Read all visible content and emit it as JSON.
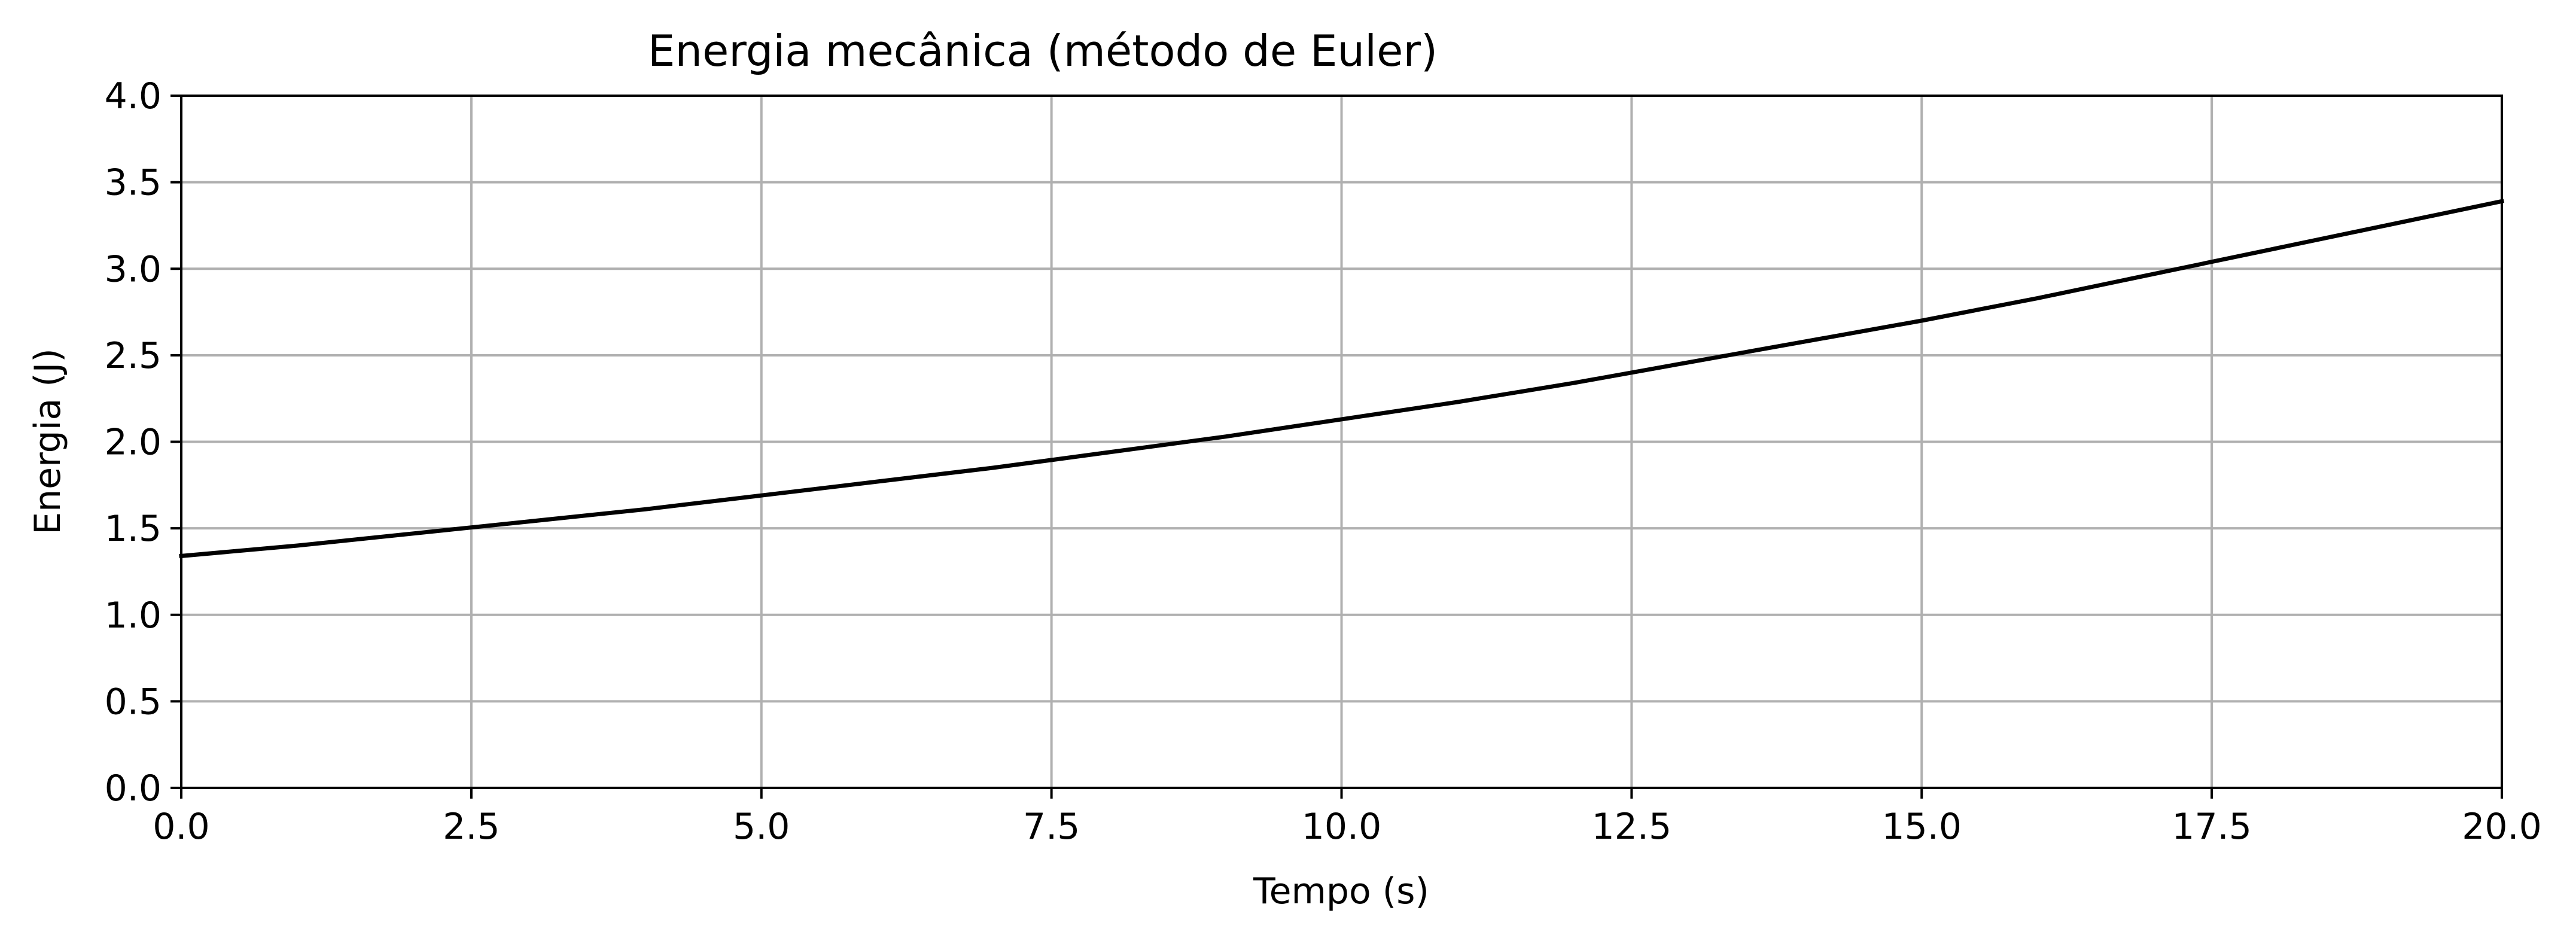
{
  "chart_data": {
    "type": "line",
    "title": "Energia mecânica (método de Euler)",
    "xlabel": "Tempo (s)",
    "ylabel": "Energia (J)",
    "xlim": [
      0,
      20
    ],
    "ylim": [
      0,
      4
    ],
    "xticks": [
      0,
      2.5,
      5,
      7.5,
      10,
      12.5,
      15,
      17.5,
      20
    ],
    "xtick_labels": [
      "0.0",
      "2.5",
      "5.0",
      "7.5",
      "10.0",
      "12.5",
      "15.0",
      "17.5",
      "20.0"
    ],
    "yticks": [
      0,
      0.5,
      1,
      1.5,
      2,
      2.5,
      3,
      3.5,
      4
    ],
    "ytick_labels": [
      "0.0",
      "0.5",
      "1.0",
      "1.5",
      "2.0",
      "2.5",
      "3.0",
      "3.5",
      "4.0"
    ],
    "grid": true,
    "series": [
      {
        "color": "#000000",
        "x": [
          0,
          1,
          2,
          3,
          4,
          5,
          6,
          7,
          8,
          9,
          10,
          11,
          12,
          13,
          14,
          15,
          16,
          17,
          18,
          19,
          20
        ],
        "y": [
          1.34,
          1.4,
          1.47,
          1.54,
          1.61,
          1.69,
          1.77,
          1.85,
          1.94,
          2.03,
          2.13,
          2.23,
          2.34,
          2.46,
          2.58,
          2.7,
          2.83,
          2.97,
          3.11,
          3.25,
          3.39
        ]
      }
    ]
  }
}
